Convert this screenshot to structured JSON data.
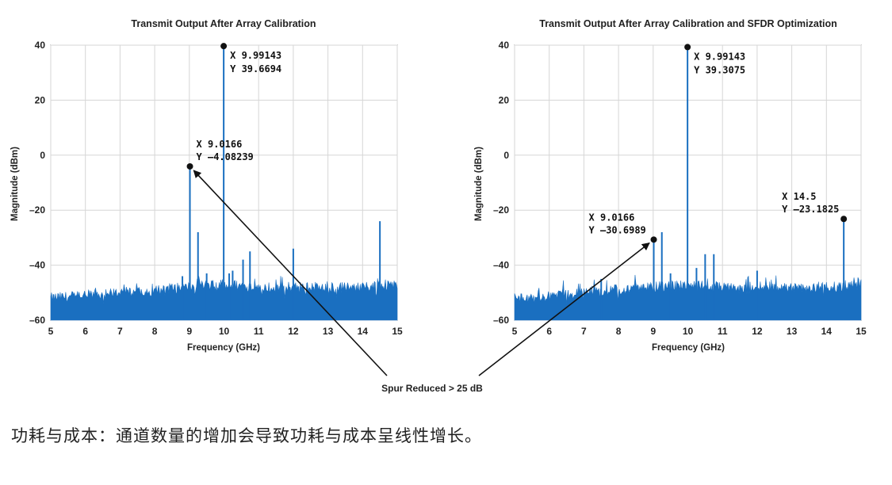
{
  "chart_data": [
    {
      "type": "line",
      "title": "Transmit Output After Array Calibration",
      "xlabel": "Frequency (GHz)",
      "ylabel": "Magnitude (dBm)",
      "xlim": [
        5,
        15
      ],
      "ylim": [
        -60,
        40
      ],
      "xticks": [
        5,
        6,
        7,
        8,
        9,
        10,
        11,
        12,
        13,
        14,
        15
      ],
      "yticks": [
        40,
        20,
        0,
        -20,
        -40,
        -60
      ],
      "grid": true,
      "noise_floor": {
        "x": [
          5,
          6,
          7,
          8,
          9,
          10,
          11,
          12,
          13,
          14,
          15
        ],
        "y": [
          -52,
          -51,
          -50,
          -49,
          -48,
          -47,
          -48,
          -48,
          -48,
          -48,
          -47
        ]
      },
      "spurs": [
        {
          "x": 8.8,
          "y": -44
        },
        {
          "x": 9.0166,
          "y": -4.08239
        },
        {
          "x": 9.25,
          "y": -28
        },
        {
          "x": 9.5,
          "y": -43
        },
        {
          "x": 9.99143,
          "y": 39.6694
        },
        {
          "x": 10.15,
          "y": -43
        },
        {
          "x": 10.25,
          "y": -42
        },
        {
          "x": 10.55,
          "y": -38
        },
        {
          "x": 10.75,
          "y": -35
        },
        {
          "x": 12.0,
          "y": -34
        },
        {
          "x": 14.5,
          "y": -24
        }
      ],
      "markers": [
        {
          "x": 9.99143,
          "y": 39.6694,
          "label_x": "X  9.99143",
          "label_y": "Y  39.6694"
        },
        {
          "x": 9.0166,
          "y": -4.08239,
          "label_x": "X  9.0166",
          "label_y": "Y  –4.08239"
        }
      ]
    },
    {
      "type": "line",
      "title": "Transmit Output After Array Calibration and SFDR Optimization",
      "xlabel": "Frequency (GHz)",
      "ylabel": "Magnitude (dBm)",
      "xlim": [
        5,
        15
      ],
      "ylim": [
        -60,
        40
      ],
      "xticks": [
        5,
        6,
        7,
        8,
        9,
        10,
        11,
        12,
        13,
        14,
        15
      ],
      "yticks": [
        40,
        20,
        0,
        -20,
        -40,
        -60
      ],
      "grid": true,
      "noise_floor": {
        "x": [
          5,
          6,
          7,
          8,
          9,
          10,
          11,
          12,
          13,
          14,
          15
        ],
        "y": [
          -52,
          -51,
          -50,
          -49,
          -48,
          -47,
          -48,
          -48,
          -48,
          -48,
          -47
        ]
      },
      "spurs": [
        {
          "x": 7.5,
          "y": -45
        },
        {
          "x": 9.0166,
          "y": -30.6989
        },
        {
          "x": 9.25,
          "y": -28
        },
        {
          "x": 9.5,
          "y": -43
        },
        {
          "x": 9.99143,
          "y": 39.3075
        },
        {
          "x": 10.25,
          "y": -41
        },
        {
          "x": 10.5,
          "y": -36
        },
        {
          "x": 10.75,
          "y": -36
        },
        {
          "x": 12.0,
          "y": -42
        },
        {
          "x": 14.5,
          "y": -23.1825
        }
      ],
      "markers": [
        {
          "x": 9.99143,
          "y": 39.3075,
          "label_x": "X  9.99143",
          "label_y": "Y  39.3075"
        },
        {
          "x": 9.0166,
          "y": -30.6989,
          "label_x": "X  9.0166",
          "label_y": "Y  –30.6989"
        },
        {
          "x": 14.5,
          "y": -23.1825,
          "label_x": "X  14.5",
          "label_y": "Y  –23.1825"
        }
      ]
    }
  ],
  "callout": "Spur Reduced > 25 dB",
  "caption": "功耗与成本：通道数量的增加会导致功耗与成本呈线性增长。",
  "colors": {
    "signal": "#1a6fc0",
    "grid": "#d6d6d6",
    "axis": "#444444"
  }
}
